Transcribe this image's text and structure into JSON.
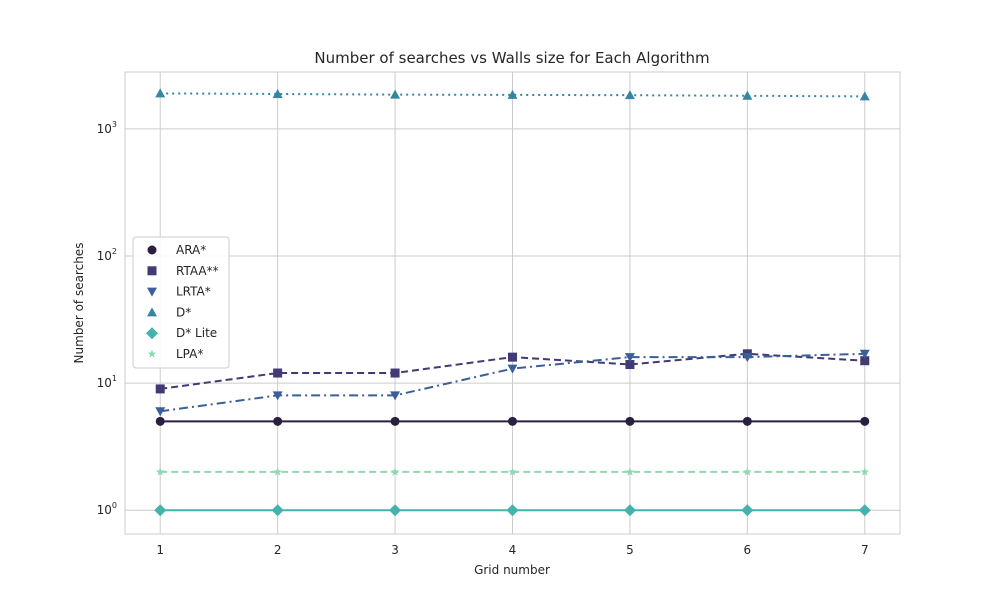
{
  "chart_data": {
    "type": "line",
    "title": "Number of searches vs Walls size for Each Algorithm",
    "xlabel": "Grid number",
    "ylabel": "Number of searches",
    "yscale": "log",
    "ylim": [
      0.65,
      2800
    ],
    "xlim": [
      0.7,
      7.3
    ],
    "grid": true,
    "legend_position": "center-left",
    "x": [
      1,
      2,
      3,
      4,
      5,
      6,
      7
    ],
    "x_ticks": [
      "1",
      "2",
      "3",
      "4",
      "5",
      "6",
      "7"
    ],
    "y_ticks": [
      {
        "base": "10",
        "exp": "0",
        "value": 1
      },
      {
        "base": "10",
        "exp": "1",
        "value": 10
      },
      {
        "base": "10",
        "exp": "2",
        "value": 100
      },
      {
        "base": "10",
        "exp": "3",
        "value": 1000
      }
    ],
    "series": [
      {
        "name": "ARA*",
        "values": [
          5,
          5,
          5,
          5,
          5,
          5,
          5
        ],
        "color": "#2b1e3e",
        "marker": "circle",
        "dash": "solid"
      },
      {
        "name": "RTAA**",
        "values": [
          9,
          12,
          12,
          16,
          14,
          17,
          15
        ],
        "color": "#403a75",
        "marker": "square",
        "dash": "dashed"
      },
      {
        "name": "LRTA*",
        "values": [
          6,
          8,
          8,
          13,
          16,
          16,
          17
        ],
        "color": "#3b5f99",
        "marker": "triangle-down",
        "dash": "dashdot"
      },
      {
        "name": "D*",
        "values": [
          1900,
          1880,
          1860,
          1850,
          1840,
          1820,
          1800
        ],
        "color": "#3486a3",
        "marker": "triangle-up",
        "dash": "dotted"
      },
      {
        "name": "D* Lite",
        "values": [
          1,
          1,
          1,
          1,
          1,
          1,
          1
        ],
        "color": "#45b3ad",
        "marker": "diamond",
        "dash": "solid"
      },
      {
        "name": "LPA*",
        "values": [
          2,
          2,
          2,
          2,
          2,
          2,
          2
        ],
        "color": "#8fd8b4",
        "marker": "star",
        "dash": "dashed"
      }
    ]
  }
}
